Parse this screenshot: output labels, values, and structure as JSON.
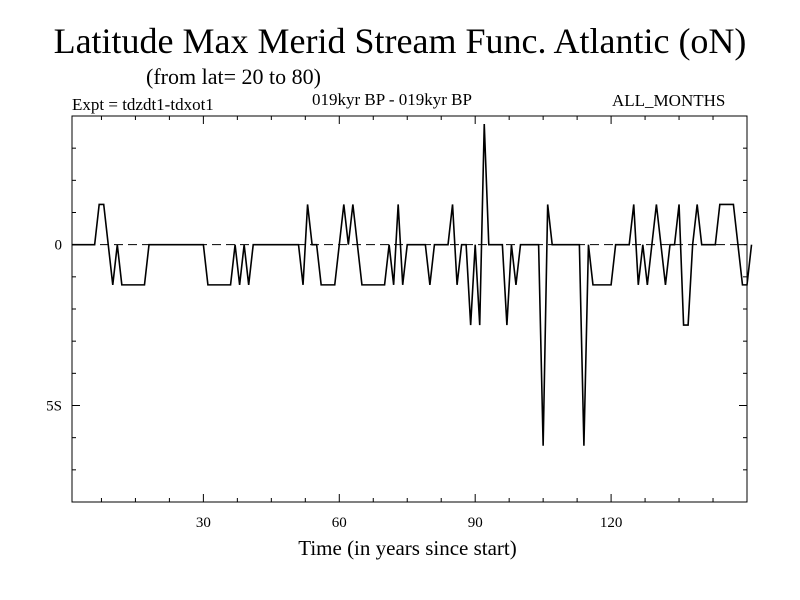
{
  "header": {
    "title": "Latitude Max Merid Stream Func. Atlantic (oN)",
    "subtitle": "(from lat= 20 to 80)",
    "expt": "Expt = tdzdt1-tdxot1",
    "period": "019kyr BP - 019kyr BP",
    "months": "ALL_MONTHS"
  },
  "chart_data": {
    "type": "line",
    "title": "Latitude Max Merid Stream Func. Atlantic (oN)",
    "xlabel": "Time (in years since start)",
    "ylabel": "",
    "xlim": [
      1,
      150
    ],
    "ylim": [
      -8,
      4
    ],
    "x_ticks": [
      30,
      60,
      90,
      120
    ],
    "x_tick_labels": [
      "30",
      "60",
      "90",
      "120"
    ],
    "y_ticks": [
      0,
      -5
    ],
    "y_tick_labels": [
      "0",
      "5S"
    ],
    "zero_line": true,
    "grid": false,
    "series": [
      {
        "values": [
          0,
          0,
          0,
          0,
          0,
          0,
          1.25,
          1.25,
          0,
          -1.25,
          0,
          -1.25,
          -1.25,
          -1.25,
          -1.25,
          -1.25,
          -1.25,
          0,
          0,
          0,
          0,
          0,
          0,
          0,
          0,
          0,
          0,
          0,
          0,
          0,
          -1.25,
          -1.25,
          -1.25,
          -1.25,
          -1.25,
          -1.25,
          0,
          -1.25,
          0,
          -1.25,
          0,
          0,
          0,
          0,
          0,
          0,
          0,
          0,
          0,
          0,
          0,
          -1.25,
          1.25,
          0,
          0,
          -1.25,
          -1.25,
          -1.25,
          -1.25,
          0,
          1.25,
          0,
          1.25,
          0,
          -1.25,
          -1.25,
          -1.25,
          -1.25,
          -1.25,
          -1.25,
          0,
          -1.25,
          1.25,
          -1.25,
          0,
          0,
          0,
          0,
          0,
          -1.25,
          0,
          0,
          0,
          0,
          1.25,
          -1.25,
          0,
          0,
          -2.5,
          0,
          -2.5,
          3.75,
          0,
          0,
          0,
          0,
          -2.5,
          0,
          -1.25,
          0,
          0,
          0,
          0,
          0,
          -6.25,
          1.25,
          0,
          0,
          0,
          0,
          0,
          0,
          0,
          -6.25,
          0,
          -1.25,
          -1.25,
          -1.25,
          -1.25,
          -1.25,
          0,
          0,
          0,
          0,
          1.25,
          -1.25,
          0,
          -1.25,
          0,
          1.25,
          0,
          -1.25,
          0,
          0,
          1.25,
          -2.5,
          -2.5,
          0,
          1.25,
          0,
          0,
          0,
          0,
          1.25,
          1.25,
          1.25,
          1.25,
          0,
          -1.25,
          -1.25,
          0
        ]
      }
    ]
  }
}
